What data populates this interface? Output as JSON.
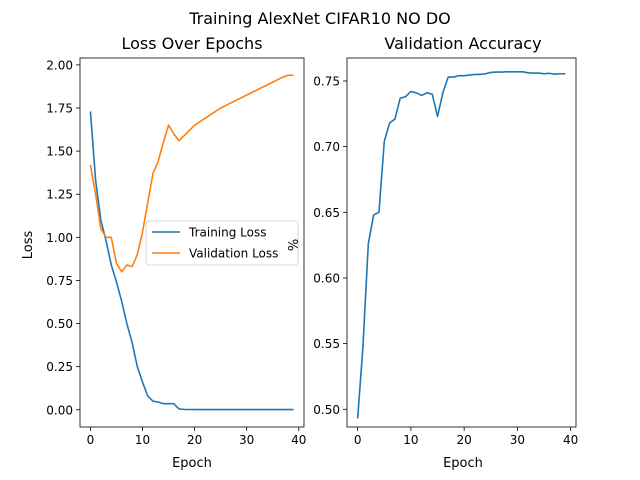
{
  "figure": {
    "title": "Training AlexNet CIFAR10 NO DO"
  },
  "colors": {
    "blue": "#1f77b4",
    "orange": "#ff7f0e"
  },
  "chart_data": [
    {
      "type": "line",
      "title": "Loss Over Epochs",
      "xlabel": "Epoch",
      "ylabel": "Loss",
      "xlim": [
        -2,
        41
      ],
      "ylim": [
        -0.1,
        2.04
      ],
      "xticks": [
        0,
        10,
        20,
        30,
        40
      ],
      "xtick_labels": [
        "0",
        "10",
        "20",
        "30",
        "40"
      ],
      "yticks": [
        0.0,
        0.25,
        0.5,
        0.75,
        1.0,
        1.25,
        1.5,
        1.75,
        2.0
      ],
      "ytick_labels": [
        "0.00",
        "0.25",
        "0.50",
        "0.75",
        "1.00",
        "1.25",
        "1.50",
        "1.75",
        "2.00"
      ],
      "grid": false,
      "legend": "center-right",
      "x": [
        0,
        1,
        2,
        3,
        4,
        5,
        6,
        7,
        8,
        9,
        10,
        11,
        12,
        13,
        14,
        15,
        16,
        17,
        18,
        19,
        20,
        21,
        22,
        23,
        24,
        25,
        26,
        27,
        28,
        29,
        30,
        31,
        32,
        33,
        34,
        35,
        36,
        37,
        38,
        39
      ],
      "series": [
        {
          "name": "Training Loss",
          "color": "#1f77b4",
          "values": [
            1.73,
            1.33,
            1.1,
            0.98,
            0.84,
            0.74,
            0.63,
            0.5,
            0.39,
            0.25,
            0.16,
            0.08,
            0.05,
            0.045,
            0.035,
            0.035,
            0.035,
            0.005,
            0.002,
            0.0015,
            0.001,
            0.001,
            0.001,
            0.001,
            0.001,
            0.001,
            0.001,
            0.001,
            0.001,
            0.001,
            0.001,
            0.001,
            0.001,
            0.001,
            0.001,
            0.001,
            0.001,
            0.001,
            0.001,
            0.001
          ]
        },
        {
          "name": "Validation Loss",
          "color": "#ff7f0e",
          "values": [
            1.42,
            1.25,
            1.05,
            1.0,
            1.0,
            0.85,
            0.8,
            0.84,
            0.83,
            0.9,
            1.03,
            1.2,
            1.37,
            1.44,
            1.55,
            1.65,
            1.6,
            1.56,
            1.59,
            1.62,
            1.65,
            1.67,
            1.69,
            1.71,
            1.73,
            1.75,
            1.765,
            1.78,
            1.795,
            1.81,
            1.825,
            1.84,
            1.855,
            1.87,
            1.885,
            1.9,
            1.915,
            1.93,
            1.94,
            1.94
          ]
        }
      ]
    },
    {
      "type": "line",
      "title": "Validation Accuracy",
      "xlabel": "Epoch",
      "ylabel": "%",
      "xlim": [
        -2,
        41
      ],
      "ylim": [
        0.4865,
        0.7675
      ],
      "xticks": [
        0,
        10,
        20,
        30,
        40
      ],
      "xtick_labels": [
        "0",
        "10",
        "20",
        "30",
        "40"
      ],
      "yticks": [
        0.5,
        0.55,
        0.6,
        0.65,
        0.7,
        0.75
      ],
      "ytick_labels": [
        "0.50",
        "0.55",
        "0.60",
        "0.65",
        "0.70",
        "0.75"
      ],
      "grid": false,
      "x": [
        0,
        1,
        2,
        3,
        4,
        5,
        6,
        7,
        8,
        9,
        10,
        11,
        12,
        13,
        14,
        15,
        16,
        17,
        18,
        19,
        20,
        21,
        22,
        23,
        24,
        25,
        26,
        27,
        28,
        29,
        30,
        31,
        32,
        33,
        34,
        35,
        36,
        37,
        38,
        39
      ],
      "series": [
        {
          "color": "#1f77b4",
          "values": [
            0.493,
            0.548,
            0.626,
            0.648,
            0.65,
            0.704,
            0.718,
            0.721,
            0.737,
            0.738,
            0.742,
            0.741,
            0.739,
            0.741,
            0.74,
            0.723,
            0.741,
            0.753,
            0.753,
            0.754,
            0.754,
            0.7545,
            0.755,
            0.755,
            0.7555,
            0.7565,
            0.7568,
            0.7568,
            0.757,
            0.757,
            0.757,
            0.757,
            0.7562,
            0.756,
            0.756,
            0.7555,
            0.7558,
            0.7552,
            0.7555,
            0.7555
          ]
        }
      ]
    }
  ]
}
